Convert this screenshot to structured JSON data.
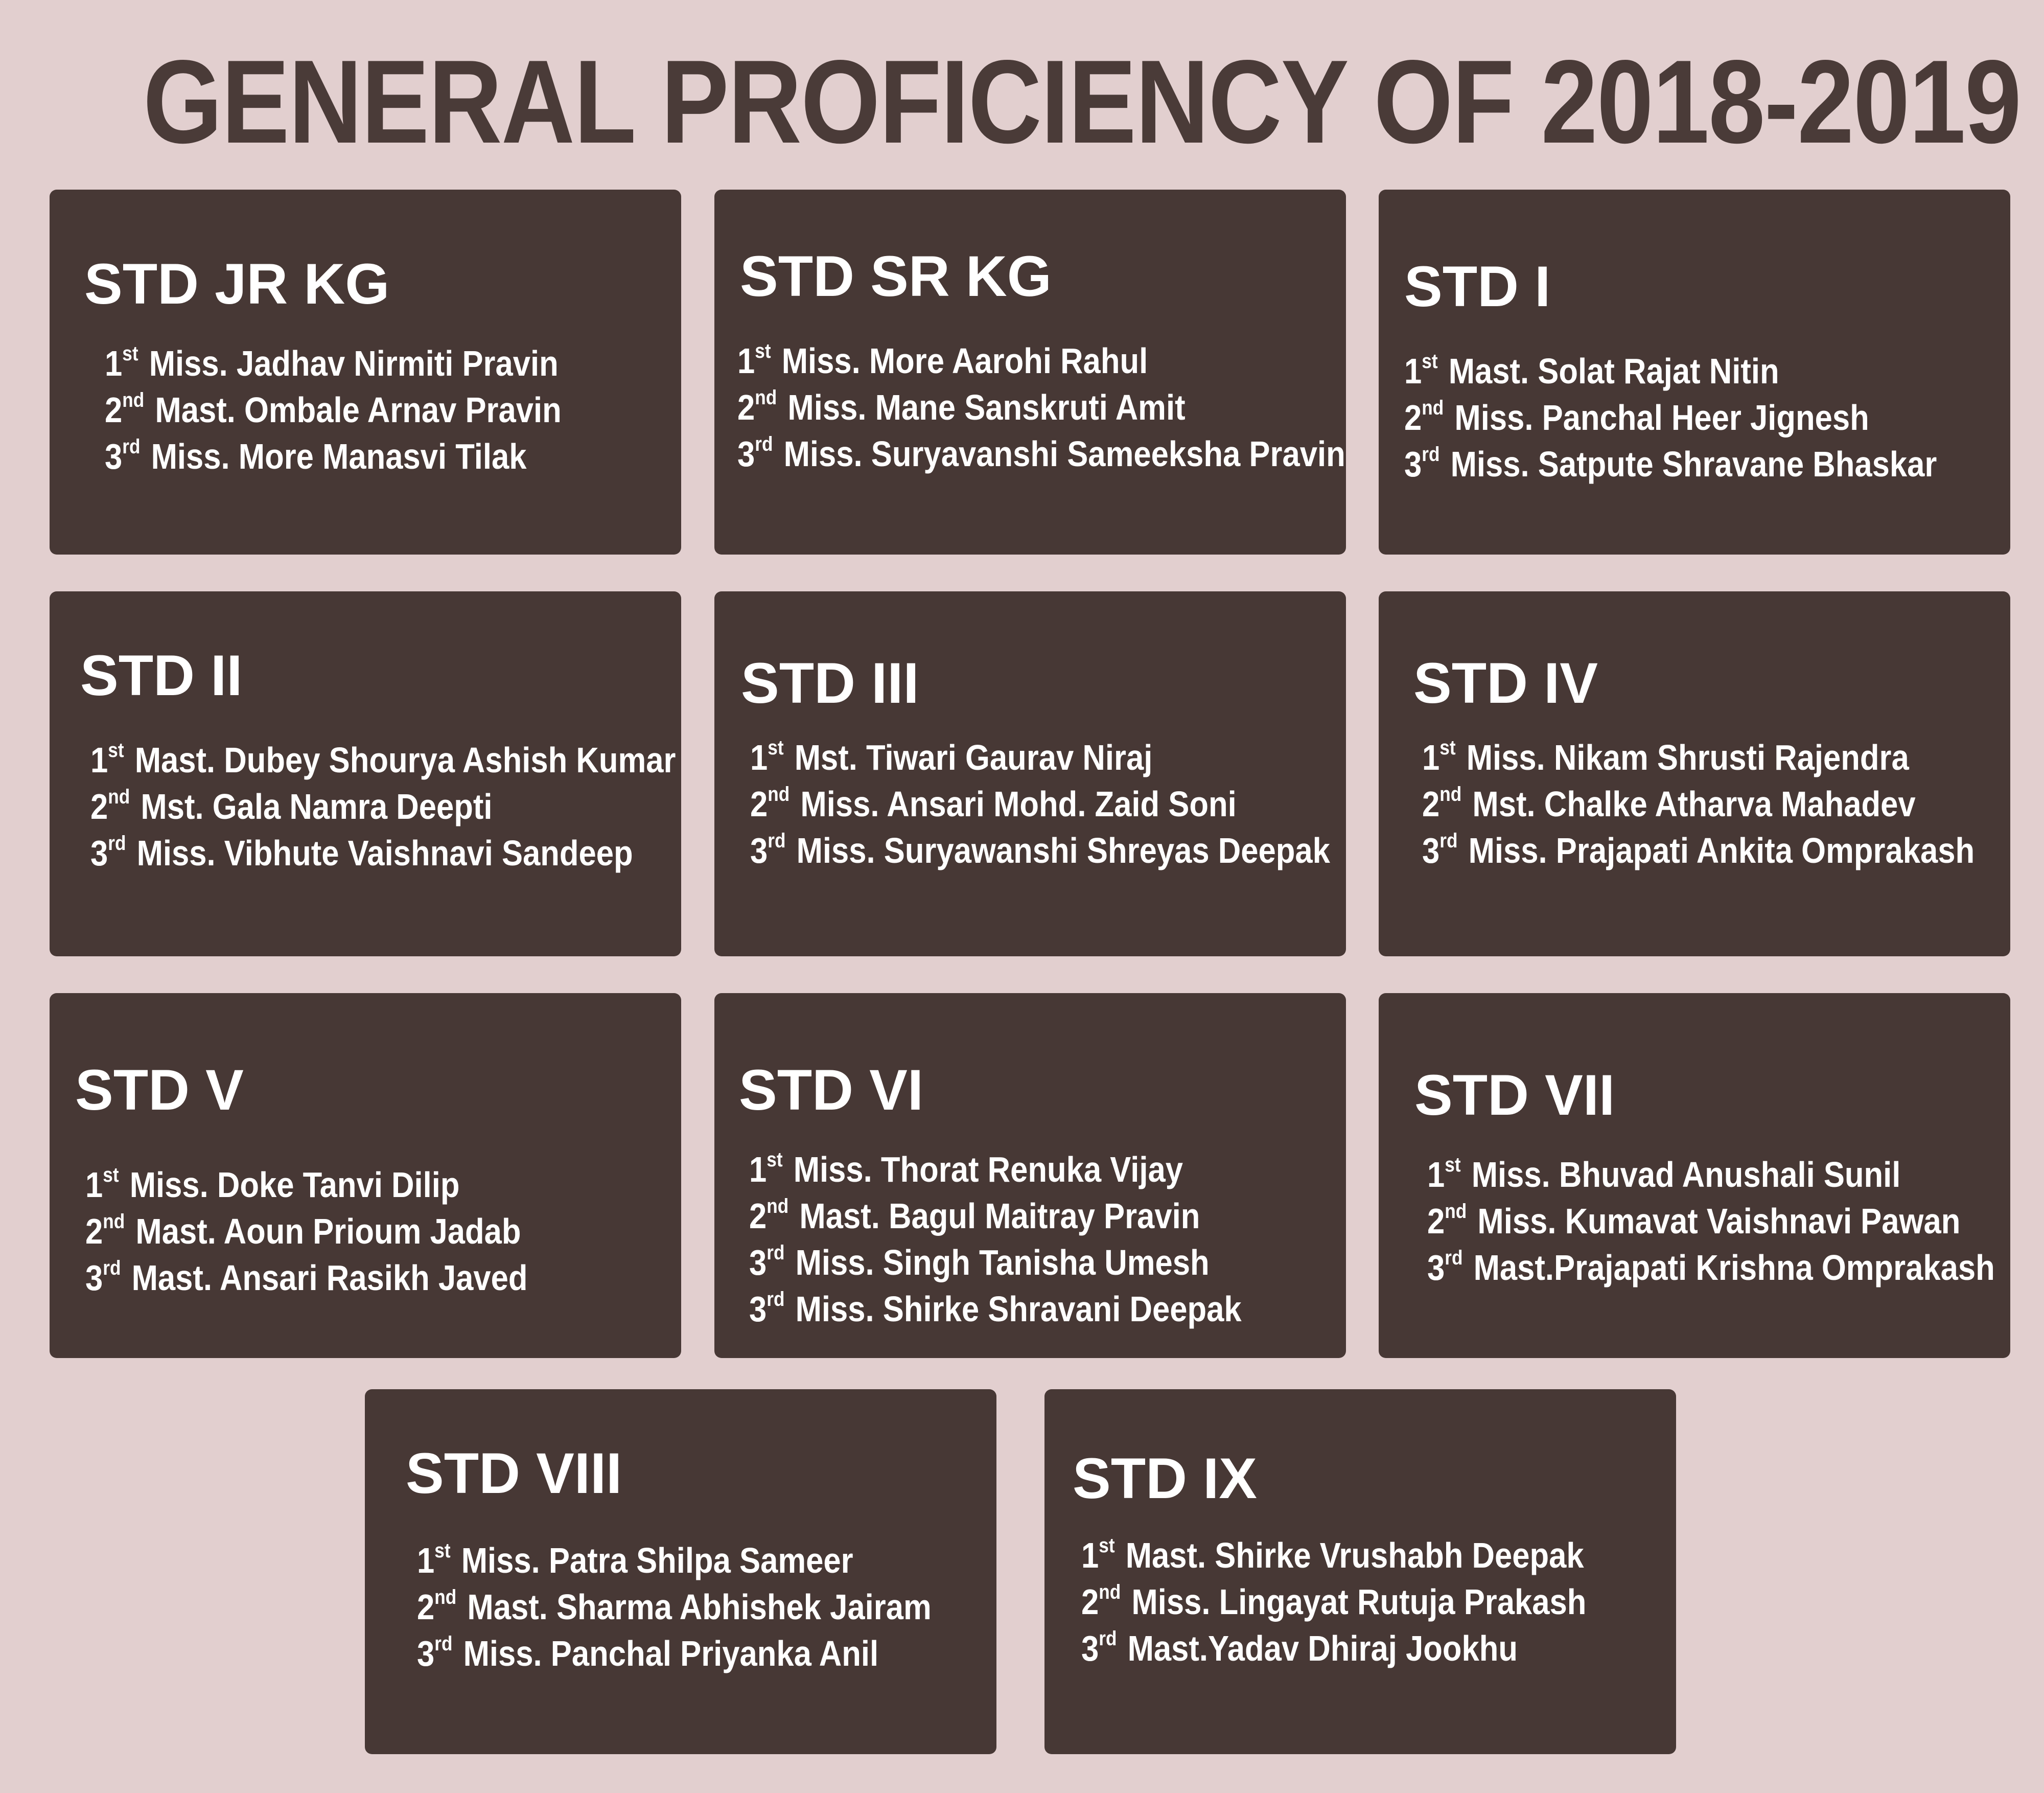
{
  "title": "GENERAL PROFICIENCY OF 2018-2019",
  "colors": {
    "background": "#e2cfcf",
    "card": "#473835",
    "title": "#4a3b38",
    "card_text": "#ffffff"
  },
  "classes": [
    {
      "name": "STD JR KG",
      "ranks": [
        {
          "num": "1",
          "sup": "st",
          "student": "Miss. Jadhav Nirmiti Pravin"
        },
        {
          "num": "2",
          "sup": "nd",
          "student": "Mast. Ombale Arnav Pravin"
        },
        {
          "num": "3",
          "sup": "rd",
          "student": "Miss.  More Manasvi Tilak"
        }
      ]
    },
    {
      "name": "STD SR KG",
      "ranks": [
        {
          "num": "1",
          "sup": "st",
          "student": "Miss. More Aarohi Rahul"
        },
        {
          "num": "2",
          "sup": "nd",
          "student": "Miss. Mane Sanskruti Amit"
        },
        {
          "num": "3",
          "sup": "rd",
          "student": "Miss. Suryavanshi Sameeksha Pravin"
        }
      ]
    },
    {
      "name": "STD I",
      "ranks": [
        {
          "num": "1",
          "sup": "st",
          "student": "Mast. Solat Rajat Nitin"
        },
        {
          "num": "2",
          "sup": "nd",
          "student": "Miss. Panchal Heer Jignesh"
        },
        {
          "num": "3",
          "sup": "rd",
          "student": "Miss. Satpute Shravane Bhaskar"
        }
      ]
    },
    {
      "name": "STD II",
      "ranks": [
        {
          "num": "1",
          "sup": "st",
          "student": "Mast. Dubey Shourya Ashish Kumar"
        },
        {
          "num": "2",
          "sup": "nd",
          "student": "Mst. Gala Namra Deepti"
        },
        {
          "num": "3",
          "sup": "rd",
          "student": "Miss. Vibhute Vaishnavi Sandeep"
        }
      ]
    },
    {
      "name": "STD III",
      "ranks": [
        {
          "num": "1",
          "sup": "st",
          "student": "Mst. Tiwari Gaurav Niraj"
        },
        {
          "num": "2",
          "sup": "nd",
          "student": "Miss. Ansari Mohd. Zaid Soni"
        },
        {
          "num": "3",
          "sup": "rd",
          "student": "Miss. Suryawanshi Shreyas Deepak"
        }
      ]
    },
    {
      "name": "STD IV",
      "ranks": [
        {
          "num": "1",
          "sup": "st",
          "student": "Miss. Nikam Shrusti Rajendra"
        },
        {
          "num": "2",
          "sup": "nd",
          "student": "Mst. Chalke Atharva Mahadev"
        },
        {
          "num": "3",
          "sup": "rd",
          "student": "Miss. Prajapati Ankita Omprakash"
        }
      ]
    },
    {
      "name": "STD V",
      "ranks": [
        {
          "num": "1",
          "sup": "st",
          "student": "Miss. Doke Tanvi Dilip"
        },
        {
          "num": "2",
          "sup": "nd",
          "student": "Mast. Aoun Prioum Jadab"
        },
        {
          "num": "3",
          "sup": "rd",
          "student": "Mast. Ansari Rasikh Javed"
        }
      ]
    },
    {
      "name": "STD VI",
      "ranks": [
        {
          "num": "1",
          "sup": "st",
          "student": "Miss. Thorat  Renuka Vijay"
        },
        {
          "num": "2",
          "sup": "nd",
          "student": "Mast. Bagul Maitray Pravin"
        },
        {
          "num": "3",
          "sup": "rd",
          "student": "Miss. Singh Tanisha Umesh"
        },
        {
          "num": "3",
          "sup": "rd",
          "student": "Miss. Shirke Shravani Deepak"
        }
      ]
    },
    {
      "name": "STD VII",
      "ranks": [
        {
          "num": "1",
          "sup": "st",
          "student": "Miss. Bhuvad Anushali Sunil"
        },
        {
          "num": "2",
          "sup": "nd",
          "student": "Miss. Kumavat Vaishnavi Pawan"
        },
        {
          "num": "3",
          "sup": "rd",
          "student": "Mast.Prajapati Krishna Omprakash"
        }
      ]
    },
    {
      "name": "STD VIII",
      "ranks": [
        {
          "num": "1",
          "sup": "st",
          "student": "Miss. Patra Shilpa Sameer"
        },
        {
          "num": "2",
          "sup": "nd",
          "student": "Mast. Sharma Abhishek Jairam"
        },
        {
          "num": "3",
          "sup": "rd",
          "student": "Miss. Panchal Priyanka Anil"
        }
      ]
    },
    {
      "name": "STD IX",
      "ranks": [
        {
          "num": "1",
          "sup": "st",
          "student": "Mast. Shirke Vrushabh Deepak"
        },
        {
          "num": "2",
          "sup": "nd",
          "student": "Miss. Lingayat Rutuja Prakash"
        },
        {
          "num": "3",
          "sup": "rd",
          "student": "Mast.Yadav Dhiraj Jookhu"
        }
      ]
    }
  ]
}
